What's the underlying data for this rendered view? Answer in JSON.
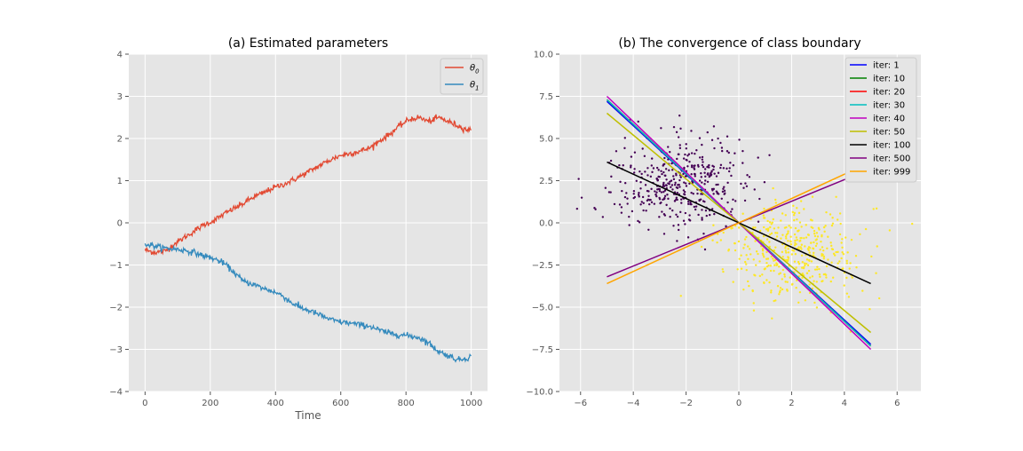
{
  "figure": {
    "background": "#ffffff",
    "axes_bg": "#e5e5e5",
    "grid_color": "#ffffff"
  },
  "chart_data": [
    {
      "type": "line",
      "title": "(a) Estimated parameters",
      "xlabel": "Time",
      "ylabel": "",
      "xlim": [
        -50,
        1050
      ],
      "ylim": [
        -4,
        4
      ],
      "xticks": [
        0,
        200,
        400,
        600,
        800,
        1000
      ],
      "yticks": [
        -4,
        -3,
        -2,
        -1,
        0,
        1,
        2,
        3,
        4
      ],
      "grid": true,
      "legend_position": "top-right",
      "series": [
        {
          "name": "θ0",
          "color": "#e24a33",
          "x": [
            0,
            30,
            60,
            90,
            120,
            150,
            180,
            210,
            240,
            270,
            300,
            330,
            360,
            390,
            420,
            450,
            480,
            510,
            540,
            570,
            600,
            630,
            660,
            690,
            720,
            750,
            780,
            810,
            840,
            870,
            900,
            930,
            960,
            990,
            1000
          ],
          "y": [
            -0.65,
            -0.7,
            -0.68,
            -0.5,
            -0.35,
            -0.2,
            -0.05,
            0.05,
            0.2,
            0.33,
            0.45,
            0.6,
            0.7,
            0.82,
            0.9,
            1.0,
            1.12,
            1.25,
            1.38,
            1.5,
            1.6,
            1.65,
            1.7,
            1.78,
            1.95,
            2.1,
            2.3,
            2.45,
            2.5,
            2.4,
            2.5,
            2.4,
            2.3,
            2.2,
            2.2
          ]
        },
        {
          "name": "θ1",
          "color": "#348abd",
          "x": [
            0,
            30,
            60,
            90,
            120,
            150,
            180,
            210,
            240,
            270,
            300,
            330,
            360,
            390,
            420,
            450,
            480,
            510,
            540,
            570,
            600,
            630,
            660,
            690,
            720,
            750,
            780,
            810,
            840,
            870,
            900,
            930,
            960,
            990,
            1000
          ],
          "y": [
            -0.5,
            -0.55,
            -0.6,
            -0.62,
            -0.65,
            -0.7,
            -0.78,
            -0.85,
            -0.95,
            -1.15,
            -1.38,
            -1.45,
            -1.55,
            -1.62,
            -1.72,
            -1.9,
            -2.02,
            -2.1,
            -2.2,
            -2.3,
            -2.35,
            -2.38,
            -2.42,
            -2.45,
            -2.55,
            -2.62,
            -2.65,
            -2.68,
            -2.72,
            -2.85,
            -3.05,
            -3.15,
            -3.25,
            -3.2,
            -3.15
          ]
        }
      ]
    },
    {
      "type": "scatter",
      "title": "(b) The convergence of class boundary",
      "xlabel": "",
      "ylabel": "",
      "xlim": [
        -6.8,
        6.9
      ],
      "ylim": [
        -10,
        10
      ],
      "xticks": [
        -6,
        -4,
        -2,
        0,
        2,
        4,
        6
      ],
      "yticks": [
        -10.0,
        -7.5,
        -5.0,
        -2.5,
        0.0,
        2.5,
        5.0,
        7.5,
        10.0
      ],
      "ytick_labels": [
        "−10.0",
        "−7.5",
        "−5.0",
        "−2.5",
        "0.0",
        "2.5",
        "5.0",
        "7.5",
        "10.0"
      ],
      "grid": true,
      "legend_position": "top-right",
      "clusters": [
        {
          "color": "#440154",
          "center": [
            -2.2,
            2.3
          ],
          "spread": [
            1.3,
            1.4
          ],
          "count": 420
        },
        {
          "color": "#fde725",
          "center": [
            2.0,
            -1.8
          ],
          "spread": [
            1.3,
            1.4
          ],
          "count": 420
        }
      ],
      "boundaries": [
        {
          "name": "iter: 1",
          "color": "#0000ff",
          "slope": -1.44
        },
        {
          "name": "iter: 10",
          "color": "#008000",
          "slope": -1.46
        },
        {
          "name": "iter: 20",
          "color": "#ff0000",
          "slope": -1.46
        },
        {
          "name": "iter: 30",
          "color": "#00bfbf",
          "slope": -1.46
        },
        {
          "name": "iter: 40",
          "color": "#bf00bf",
          "slope": -1.5
        },
        {
          "name": "iter: 50",
          "color": "#bfbf00",
          "slope": -1.3
        },
        {
          "name": "iter: 100",
          "color": "#000000",
          "slope": -0.72
        },
        {
          "name": "iter: 500",
          "color": "#800080",
          "slope": 0.64
        },
        {
          "name": "iter: 999",
          "color": "#ffa500",
          "slope": 0.72
        }
      ],
      "boundary_x_range": [
        -5,
        5
      ]
    }
  ]
}
